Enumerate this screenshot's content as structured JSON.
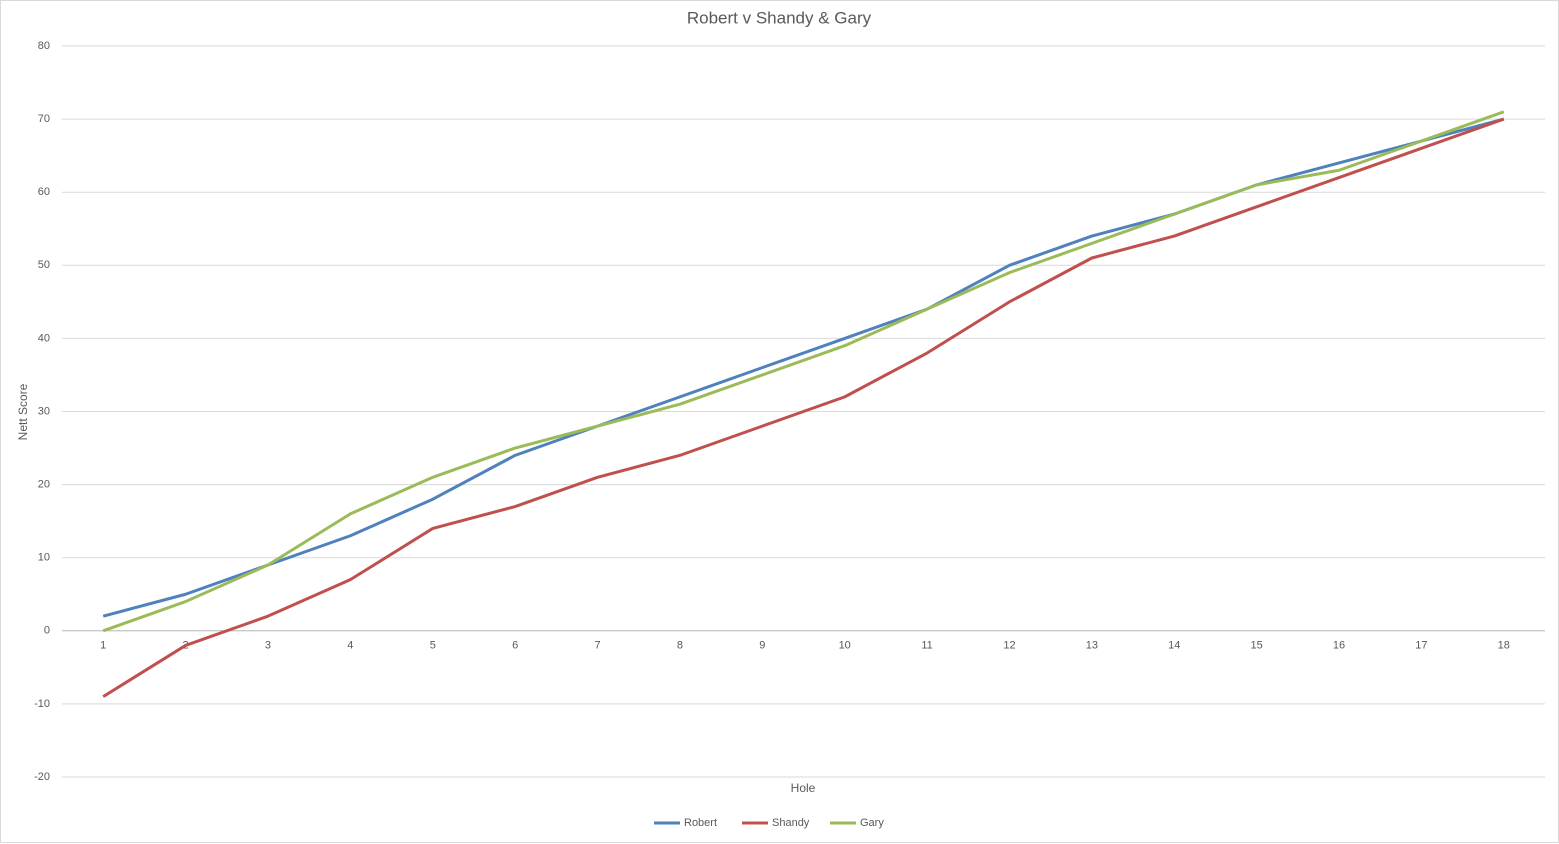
{
  "chart_data": {
    "type": "line",
    "title": "Robert v Shandy & Gary",
    "x_label": "Hole",
    "y_label": "Nett Score",
    "categories": [
      1,
      2,
      3,
      4,
      5,
      6,
      7,
      8,
      9,
      10,
      11,
      12,
      13,
      14,
      15,
      16,
      17,
      18
    ],
    "series": [
      {
        "name": "Robert",
        "color": "#4f81bd",
        "values": [
          2,
          5,
          9,
          13,
          18,
          24,
          28,
          32,
          36,
          40,
          44,
          50,
          54,
          57,
          61,
          64,
          67,
          70
        ]
      },
      {
        "name": "Shandy",
        "color": "#c0504d",
        "values": [
          -9,
          -2,
          2,
          7,
          14,
          17,
          21,
          24,
          28,
          32,
          38,
          45,
          51,
          54,
          58,
          62,
          66,
          70
        ]
      },
      {
        "name": "Gary",
        "color": "#9bbb59",
        "values": [
          0,
          4,
          9,
          16,
          21,
          25,
          28,
          31,
          35,
          39,
          44,
          49,
          53,
          57,
          61,
          63,
          67,
          71
        ]
      }
    ],
    "ylim": [
      -20,
      80
    ],
    "yticks": [
      -20,
      -10,
      0,
      10,
      20,
      30,
      40,
      50,
      60,
      70,
      80
    ],
    "grid": true,
    "legend": "bottom"
  }
}
